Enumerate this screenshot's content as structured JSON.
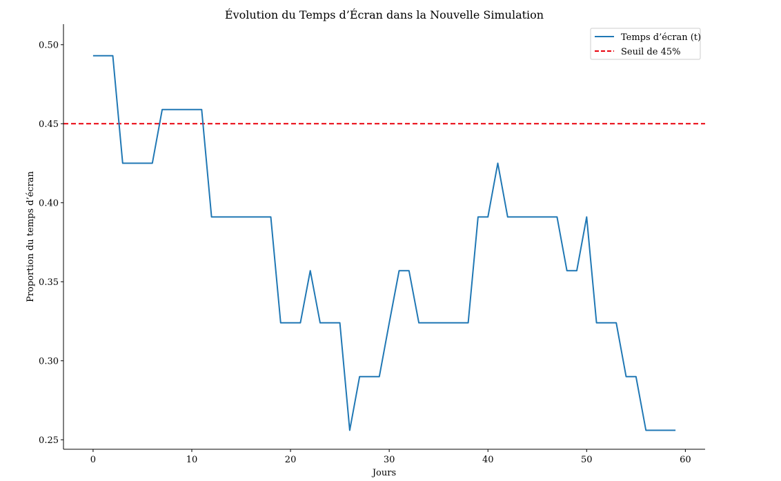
{
  "chart_data": {
    "type": "line",
    "title": "Évolution du Temps d’Écran dans la Nouvelle Simulation",
    "xlabel": "Jours",
    "ylabel": "Proportion du temps d’écran",
    "xlim": [
      -3,
      62
    ],
    "ylim": [
      0.244,
      0.513
    ],
    "xticks": [
      0,
      10,
      20,
      30,
      40,
      50,
      60
    ],
    "yticks": [
      0.25,
      0.3,
      0.35,
      0.4,
      0.45,
      0.5
    ],
    "ytick_labels": [
      "0.25",
      "0.30",
      "0.35",
      "0.40",
      "0.45",
      "0.50"
    ],
    "series": [
      {
        "name": "Temps d’écran (t)",
        "color": "#1f77b4",
        "x": [
          0,
          1,
          2,
          3,
          4,
          5,
          6,
          7,
          8,
          9,
          10,
          11,
          12,
          13,
          14,
          15,
          16,
          17,
          18,
          19,
          20,
          21,
          22,
          23,
          24,
          25,
          26,
          27,
          28,
          29,
          30,
          31,
          32,
          33,
          34,
          35,
          36,
          37,
          38,
          39,
          40,
          41,
          42,
          43,
          44,
          45,
          46,
          47,
          48,
          49,
          50,
          51,
          52,
          53,
          54,
          55,
          56,
          57,
          58,
          59
        ],
        "y": [
          0.493,
          0.493,
          0.493,
          0.425,
          0.425,
          0.425,
          0.425,
          0.459,
          0.459,
          0.459,
          0.459,
          0.459,
          0.391,
          0.391,
          0.391,
          0.391,
          0.391,
          0.391,
          0.391,
          0.324,
          0.324,
          0.324,
          0.357,
          0.324,
          0.324,
          0.324,
          0.256,
          0.29,
          0.29,
          0.29,
          0.324,
          0.357,
          0.357,
          0.324,
          0.324,
          0.324,
          0.324,
          0.324,
          0.324,
          0.391,
          0.391,
          0.425,
          0.391,
          0.391,
          0.391,
          0.391,
          0.391,
          0.391,
          0.357,
          0.357,
          0.391,
          0.324,
          0.324,
          0.324,
          0.29,
          0.29,
          0.256,
          0.256,
          0.256,
          0.256
        ]
      }
    ],
    "reference_line": {
      "name": "Seuil de 45%",
      "y": 0.45,
      "color": "#e8000b",
      "style": "dashed"
    },
    "legend_position": "top-right",
    "grid": false
  }
}
